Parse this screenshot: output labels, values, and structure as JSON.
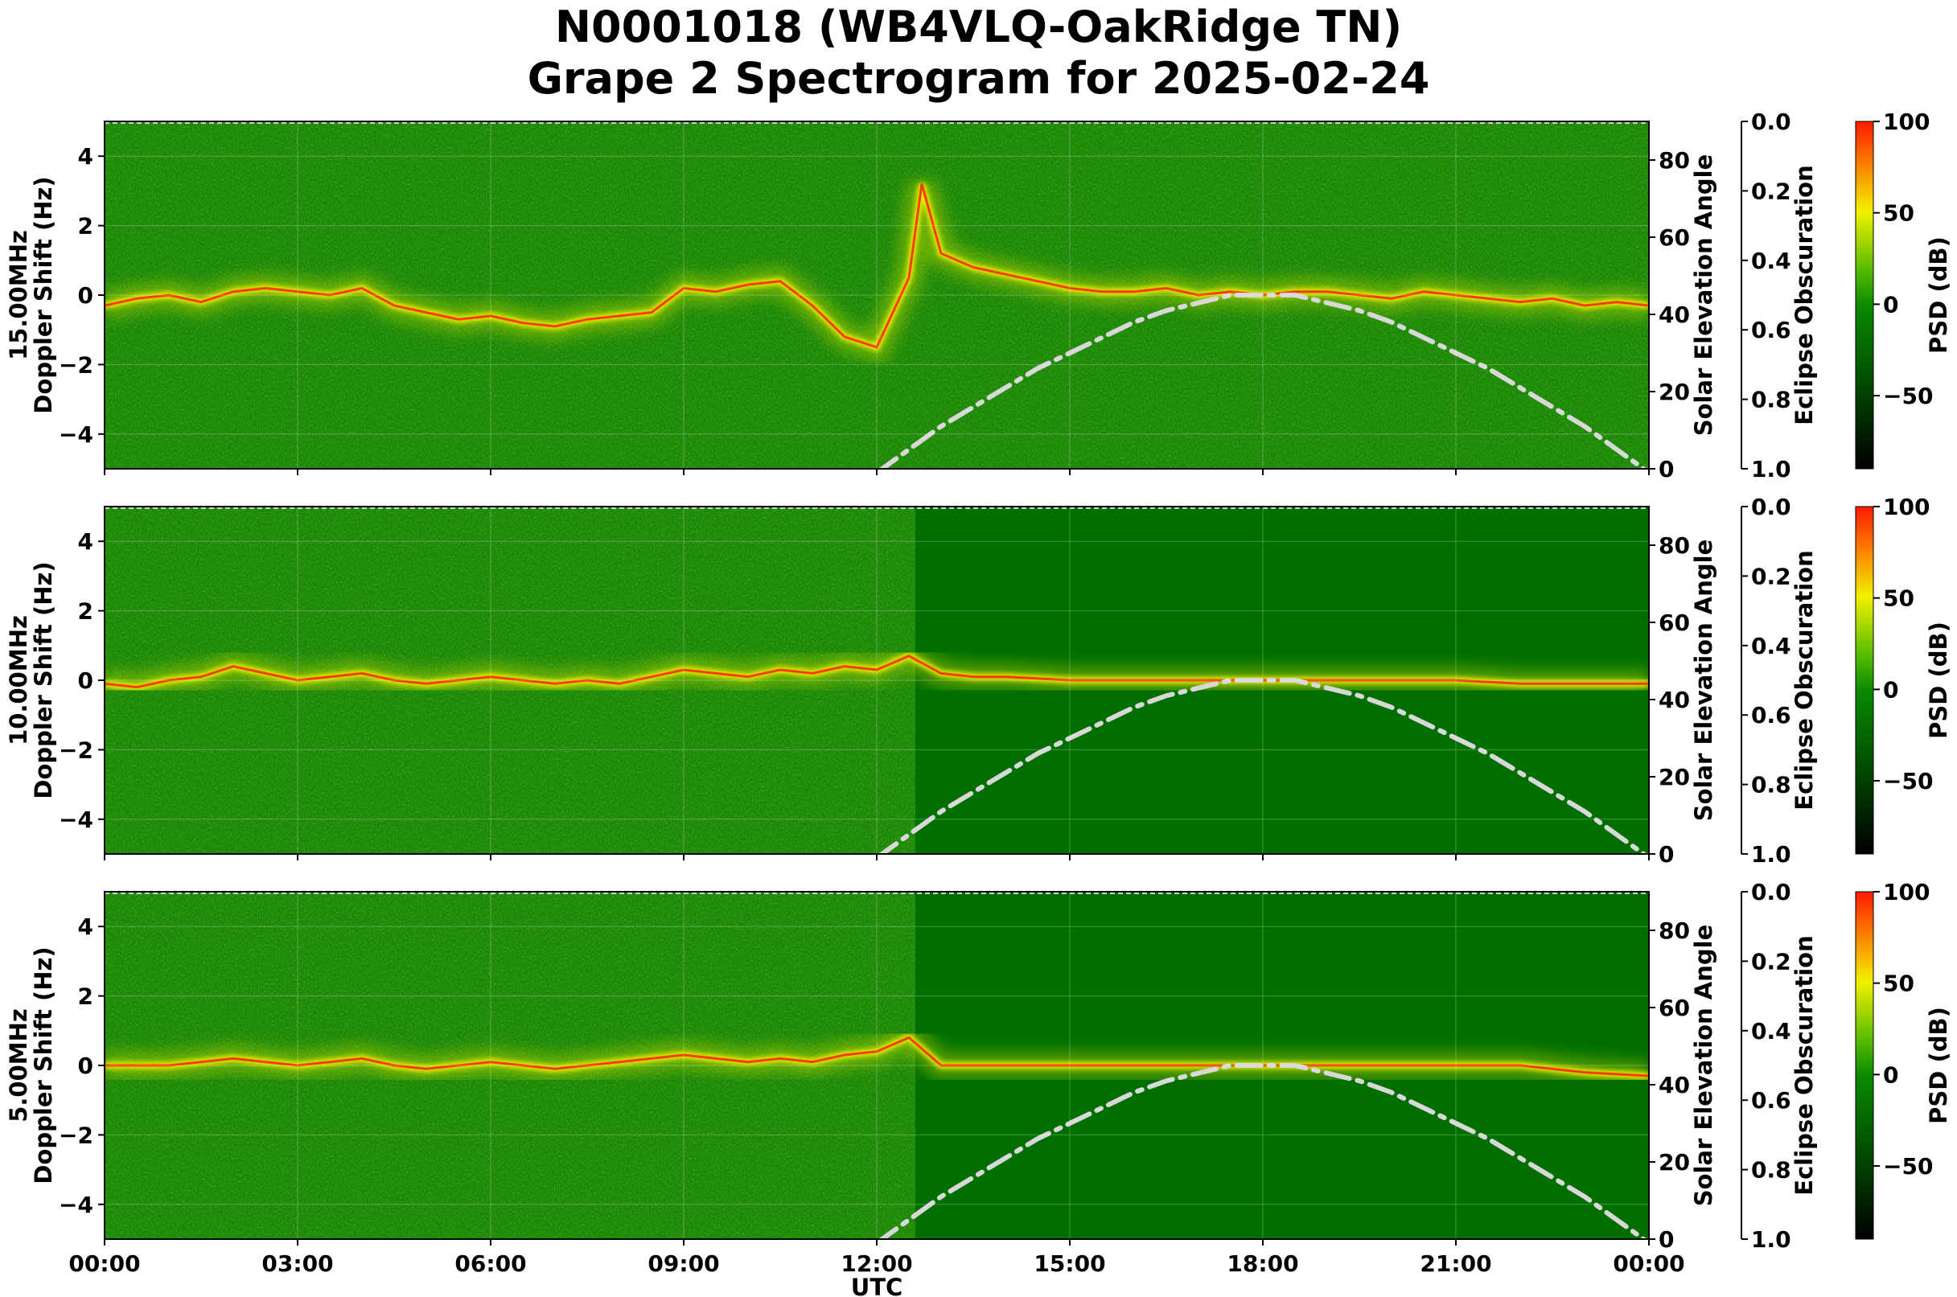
{
  "title": {
    "line1": "N0001018 (WB4VLQ-OakRidge TN)",
    "line2": "Grape 2 Spectrogram for 2025-02-24"
  },
  "colors": {
    "background_green": "#006f00",
    "mid_green": "#2f9a10",
    "yellow": "#f2f000",
    "red": "#ff2000",
    "solar_curve": "#d8d8d8"
  },
  "chart_data": {
    "type": "heatmap",
    "xlabel": "UTC",
    "x_ticks": [
      "00:00",
      "03:00",
      "06:00",
      "09:00",
      "12:00",
      "15:00",
      "18:00",
      "21:00",
      "00:00"
    ],
    "x_range_hours": [
      0,
      24
    ],
    "y_range": [
      -5,
      5
    ],
    "y_ticks": [
      "4",
      "2",
      "0",
      "−2",
      "−4"
    ],
    "y_tick_values": [
      4,
      2,
      0,
      -2,
      -4
    ],
    "solar_elevation": {
      "label": "Solar Elevation Angle",
      "range": [
        0,
        90
      ],
      "ticks": [
        "80",
        "60",
        "40",
        "20",
        "0"
      ],
      "tick_values": [
        80,
        60,
        40,
        20,
        0
      ],
      "curve": {
        "x_hours": [
          12.0,
          12.5,
          13.0,
          13.5,
          14.0,
          14.5,
          15.0,
          15.5,
          16.0,
          16.5,
          17.0,
          17.5,
          18.0,
          18.5,
          19.0,
          19.5,
          20.0,
          20.5,
          21.0,
          21.5,
          22.0,
          22.5,
          23.0,
          23.5,
          24.0
        ],
        "y_degrees": [
          -1,
          5,
          11,
          16,
          21,
          26,
          30,
          34,
          38,
          41,
          43,
          45,
          45,
          45,
          43,
          41,
          38,
          34,
          30,
          26,
          21,
          16,
          11,
          5,
          -1
        ]
      }
    },
    "eclipse_obscuration": {
      "label": "Eclipse Obscuration",
      "ticks": [
        "0.0",
        "0.2",
        "0.4",
        "0.6",
        "0.8",
        "1.0"
      ],
      "tick_values": [
        0.0,
        0.2,
        0.4,
        0.6,
        0.8,
        1.0
      ]
    },
    "colorbar": {
      "label": "PSD (dB)",
      "ticks": [
        "100",
        "50",
        "0",
        "−50"
      ],
      "tick_values": [
        100,
        50,
        0,
        -50
      ],
      "range": [
        -90,
        100
      ]
    },
    "panels": [
      {
        "ylabel_line1": "15.00MHz",
        "ylabel_line2": "Doppler Shift (Hz)",
        "trace_hours": [
          0,
          0.5,
          1,
          1.5,
          2,
          2.5,
          3,
          3.5,
          4,
          4.5,
          5,
          5.5,
          6,
          6.5,
          7,
          7.5,
          8,
          8.5,
          9,
          9.5,
          10,
          10.5,
          11,
          11.5,
          12,
          12.5,
          12.7,
          13,
          13.5,
          14,
          14.5,
          15,
          15.5,
          16,
          16.5,
          17,
          17.5,
          18,
          18.5,
          19,
          19.5,
          20,
          20.5,
          21,
          21.5,
          22,
          22.5,
          23,
          23.5,
          24
        ],
        "trace_hz": [
          -0.3,
          -0.1,
          0.0,
          -0.2,
          0.1,
          0.2,
          0.1,
          0.0,
          0.2,
          -0.3,
          -0.5,
          -0.7,
          -0.6,
          -0.8,
          -0.9,
          -0.7,
          -0.6,
          -0.5,
          0.2,
          0.1,
          0.3,
          0.4,
          -0.3,
          -1.2,
          -1.5,
          0.5,
          3.2,
          1.2,
          0.8,
          0.6,
          0.4,
          0.2,
          0.1,
          0.1,
          0.2,
          0.0,
          0.1,
          0.0,
          0.1,
          0.1,
          0.0,
          -0.1,
          0.1,
          0.0,
          -0.1,
          -0.2,
          -0.1,
          -0.3,
          -0.2,
          -0.3
        ]
      },
      {
        "ylabel_line1": "10.00MHz",
        "ylabel_line2": "Doppler Shift (Hz)",
        "trace_hours": [
          0,
          0.5,
          1,
          1.5,
          2,
          2.5,
          3,
          3.5,
          4,
          4.5,
          5,
          5.5,
          6,
          6.5,
          7,
          7.5,
          8,
          8.5,
          9,
          9.5,
          10,
          10.5,
          11,
          11.5,
          12,
          12.5,
          13,
          13.5,
          14,
          15,
          16,
          17,
          18,
          19,
          20,
          21,
          22,
          23,
          24
        ],
        "trace_hz": [
          -0.1,
          -0.2,
          0.0,
          0.1,
          0.4,
          0.2,
          0.0,
          0.1,
          0.2,
          0.0,
          -0.1,
          0.0,
          0.1,
          0.0,
          -0.1,
          0.0,
          -0.1,
          0.1,
          0.3,
          0.2,
          0.1,
          0.3,
          0.2,
          0.4,
          0.3,
          0.7,
          0.2,
          0.1,
          0.1,
          0.0,
          0.0,
          0.0,
          0.0,
          0.0,
          0.0,
          0.0,
          -0.1,
          -0.1,
          -0.1
        ]
      },
      {
        "ylabel_line1": "5.00MHz",
        "ylabel_line2": "Doppler Shift (Hz)",
        "trace_hours": [
          0,
          0.5,
          1,
          1.5,
          2,
          2.5,
          3,
          3.5,
          4,
          4.5,
          5,
          5.5,
          6,
          6.5,
          7,
          7.5,
          8,
          8.5,
          9,
          9.5,
          10,
          10.5,
          11,
          11.5,
          12,
          12.5,
          13,
          14,
          15,
          16,
          17,
          18,
          19,
          20,
          21,
          22,
          23,
          24
        ],
        "trace_hz": [
          0.0,
          0.0,
          0.0,
          0.1,
          0.2,
          0.1,
          0.0,
          0.1,
          0.2,
          0.0,
          -0.1,
          0.0,
          0.1,
          0.0,
          -0.1,
          0.0,
          0.1,
          0.2,
          0.3,
          0.2,
          0.1,
          0.2,
          0.1,
          0.3,
          0.4,
          0.8,
          0.0,
          0.0,
          0.0,
          0.0,
          0.0,
          0.0,
          0.0,
          0.0,
          0.0,
          0.0,
          -0.2,
          -0.3
        ]
      }
    ]
  }
}
